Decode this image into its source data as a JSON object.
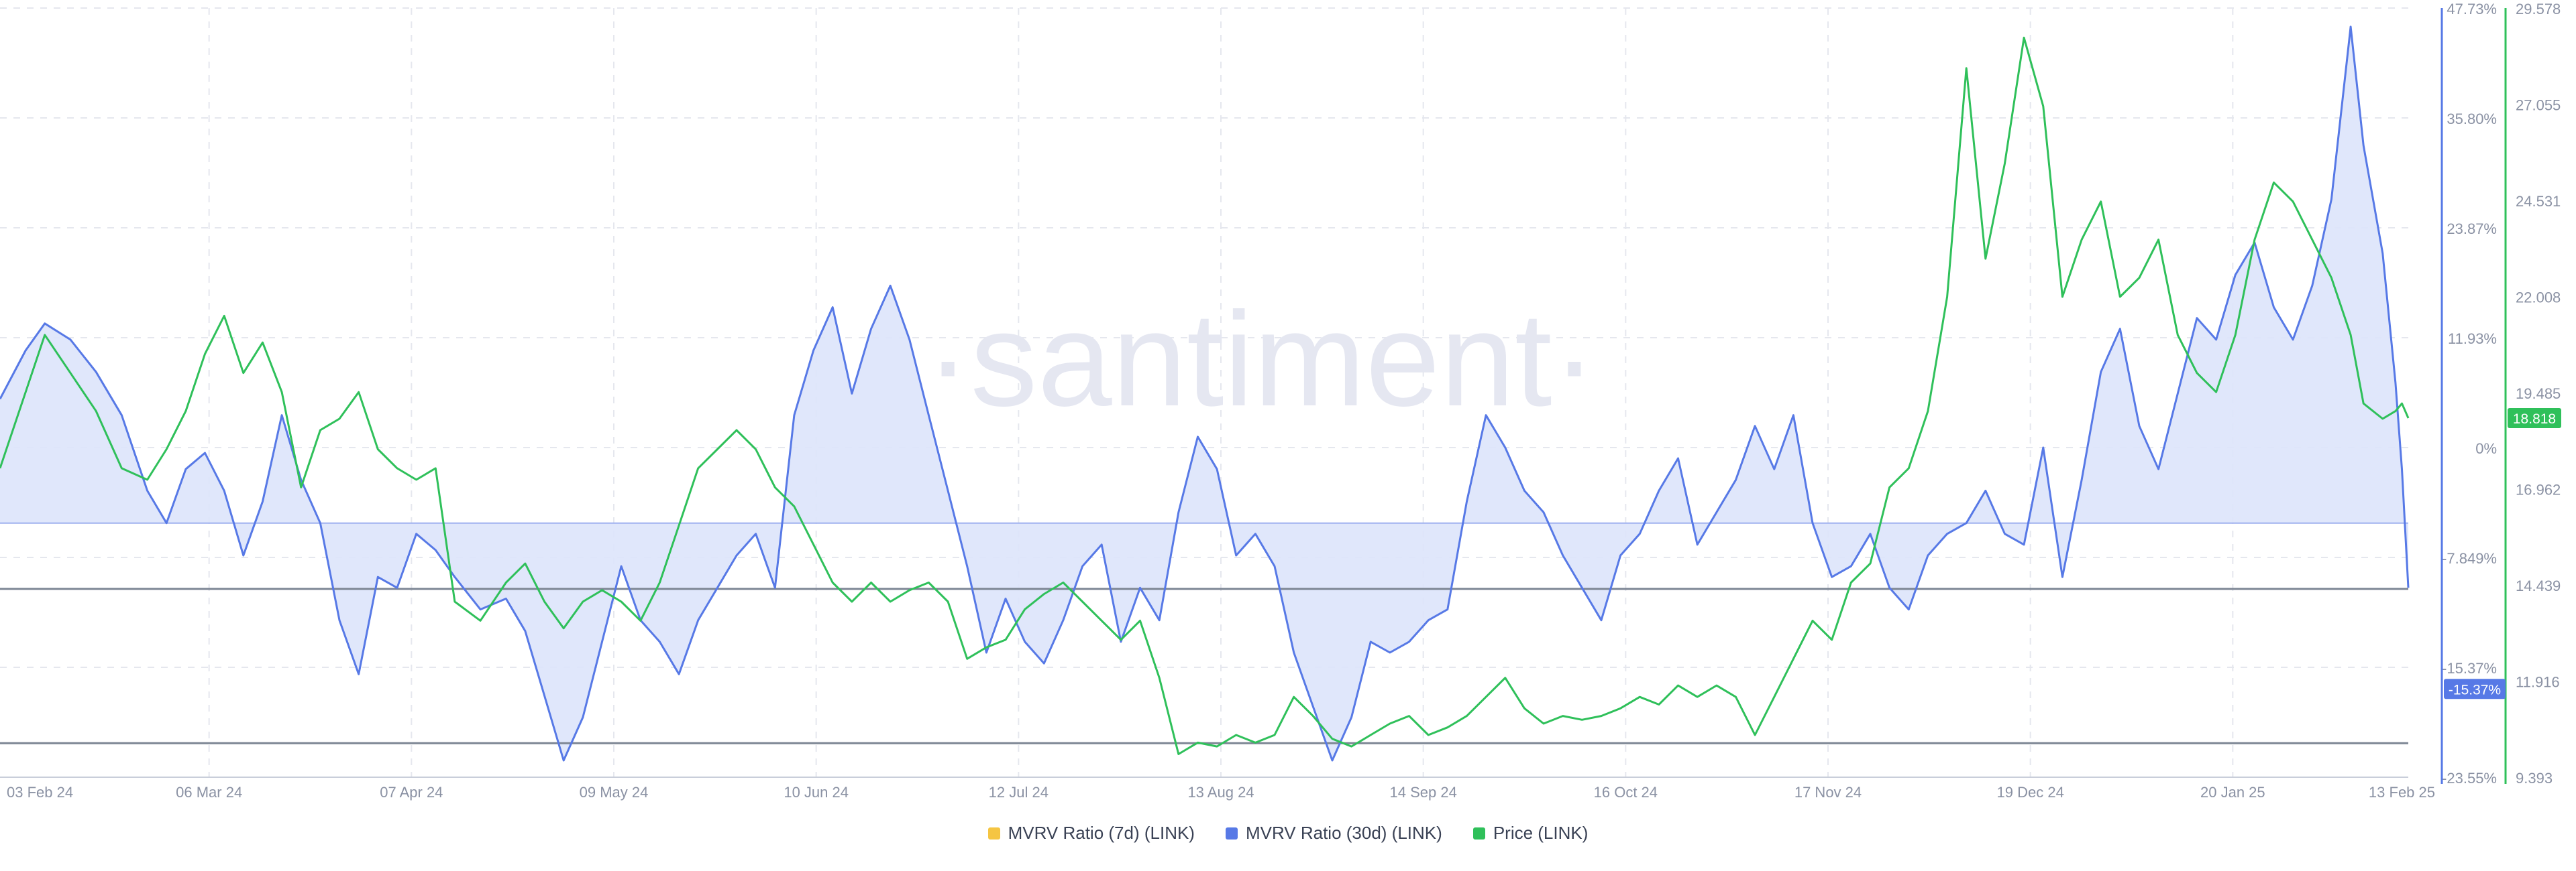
{
  "watermark": "·santiment·",
  "colors": {
    "mvrv7d": "#f5c542",
    "mvrv30d": "#5779e6",
    "price": "#2fc05a",
    "fill": "#dde4fb",
    "grid": "#e5e7ee",
    "band": "#7d8694"
  },
  "legend": [
    {
      "label": "MVRV Ratio (7d) (LINK)",
      "color": "#f5c542"
    },
    {
      "label": "MVRV Ratio (30d) (LINK)",
      "color": "#5779e6"
    },
    {
      "label": "Price (LINK)",
      "color": "#2fc05a"
    }
  ],
  "chart_data": {
    "type": "line",
    "x_ticks": [
      "03 Feb 24",
      "06 Mar 24",
      "07 Apr 24",
      "09 May 24",
      "10 Jun 24",
      "12 Jul 24",
      "13 Aug 24",
      "14 Sep 24",
      "16 Oct 24",
      "17 Nov 24",
      "19 Dec 24",
      "20 Jan 25",
      "13 Feb 25"
    ],
    "x_range": [
      "2024-02-03",
      "2025-02-13"
    ],
    "mvrv_axis": {
      "ticks": [
        "47.73%",
        "35.80%",
        "23.87%",
        "11.93%",
        "0%",
        "-7.849%",
        "-15.37%",
        "-23.55%"
      ],
      "range": [
        -23.55,
        47.73
      ],
      "current_label": "-15.37%"
    },
    "price_axis": {
      "ticks": [
        "29.578",
        "27.055",
        "24.531",
        "22.008",
        "19.485",
        "16.962",
        "14.439",
        "11.916",
        "9.393"
      ],
      "range": [
        9.393,
        29.578
      ],
      "current_label": "18.818"
    },
    "reference_lines": [
      -6.1,
      -20.4
    ],
    "series": [
      {
        "name": "MVRV Ratio (30d) (LINK)",
        "points": [
          [
            "2024-02-03",
            11.5
          ],
          [
            "2024-02-07",
            16
          ],
          [
            "2024-02-10",
            18.5
          ],
          [
            "2024-02-14",
            17
          ],
          [
            "2024-02-18",
            14
          ],
          [
            "2024-02-22",
            10
          ],
          [
            "2024-02-26",
            3
          ],
          [
            "2024-02-29",
            0
          ],
          [
            "2024-03-03",
            5
          ],
          [
            "2024-03-06",
            6.5
          ],
          [
            "2024-03-09",
            3
          ],
          [
            "2024-03-12",
            -3
          ],
          [
            "2024-03-15",
            2
          ],
          [
            "2024-03-18",
            10
          ],
          [
            "2024-03-21",
            4
          ],
          [
            "2024-03-24",
            0
          ],
          [
            "2024-03-27",
            -9
          ],
          [
            "2024-03-30",
            -14
          ],
          [
            "2024-04-02",
            -5
          ],
          [
            "2024-04-05",
            -6
          ],
          [
            "2024-04-08",
            -1
          ],
          [
            "2024-04-11",
            -2.5
          ],
          [
            "2024-04-14",
            -5
          ],
          [
            "2024-04-18",
            -8
          ],
          [
            "2024-04-22",
            -7
          ],
          [
            "2024-04-25",
            -10
          ],
          [
            "2024-04-28",
            -16
          ],
          [
            "2024-05-01",
            -22
          ],
          [
            "2024-05-04",
            -18
          ],
          [
            "2024-05-07",
            -11
          ],
          [
            "2024-05-10",
            -4
          ],
          [
            "2024-05-13",
            -9
          ],
          [
            "2024-05-16",
            -11
          ],
          [
            "2024-05-19",
            -14
          ],
          [
            "2024-05-22",
            -9
          ],
          [
            "2024-05-25",
            -6
          ],
          [
            "2024-05-28",
            -3
          ],
          [
            "2024-05-31",
            -1
          ],
          [
            "2024-06-03",
            -6
          ],
          [
            "2024-06-06",
            10
          ],
          [
            "2024-06-09",
            16
          ],
          [
            "2024-06-12",
            20
          ],
          [
            "2024-06-15",
            12
          ],
          [
            "2024-06-18",
            18
          ],
          [
            "2024-06-21",
            22
          ],
          [
            "2024-06-24",
            17
          ],
          [
            "2024-06-27",
            10
          ],
          [
            "2024-06-30",
            3
          ],
          [
            "2024-07-03",
            -4
          ],
          [
            "2024-07-06",
            -12
          ],
          [
            "2024-07-09",
            -7
          ],
          [
            "2024-07-12",
            -11
          ],
          [
            "2024-07-15",
            -13
          ],
          [
            "2024-07-18",
            -9
          ],
          [
            "2024-07-21",
            -4
          ],
          [
            "2024-07-24",
            -2
          ],
          [
            "2024-07-27",
            -11
          ],
          [
            "2024-07-30",
            -6
          ],
          [
            "2024-08-02",
            -9
          ],
          [
            "2024-08-05",
            1
          ],
          [
            "2024-08-08",
            8
          ],
          [
            "2024-08-11",
            5
          ],
          [
            "2024-08-14",
            -3
          ],
          [
            "2024-08-17",
            -1
          ],
          [
            "2024-08-20",
            -4
          ],
          [
            "2024-08-23",
            -12
          ],
          [
            "2024-08-26",
            -17
          ],
          [
            "2024-08-29",
            -22
          ],
          [
            "2024-09-01",
            -18
          ],
          [
            "2024-09-04",
            -11
          ],
          [
            "2024-09-07",
            -12
          ],
          [
            "2024-09-10",
            -11
          ],
          [
            "2024-09-13",
            -9
          ],
          [
            "2024-09-16",
            -8
          ],
          [
            "2024-09-19",
            2
          ],
          [
            "2024-09-22",
            10
          ],
          [
            "2024-09-25",
            7
          ],
          [
            "2024-09-28",
            3
          ],
          [
            "2024-10-01",
            1
          ],
          [
            "2024-10-04",
            -3
          ],
          [
            "2024-10-07",
            -6
          ],
          [
            "2024-10-10",
            -9
          ],
          [
            "2024-10-13",
            -3
          ],
          [
            "2024-10-16",
            -1
          ],
          [
            "2024-10-19",
            3
          ],
          [
            "2024-10-22",
            6
          ],
          [
            "2024-10-25",
            -2
          ],
          [
            "2024-10-28",
            1
          ],
          [
            "2024-10-31",
            4
          ],
          [
            "2024-11-03",
            9
          ],
          [
            "2024-11-06",
            5
          ],
          [
            "2024-11-09",
            10
          ],
          [
            "2024-11-12",
            0
          ],
          [
            "2024-11-15",
            -5
          ],
          [
            "2024-11-18",
            -4
          ],
          [
            "2024-11-21",
            -1
          ],
          [
            "2024-11-24",
            -6
          ],
          [
            "2024-11-27",
            -8
          ],
          [
            "2024-11-30",
            -3
          ],
          [
            "2024-12-03",
            -1
          ],
          [
            "2024-12-06",
            0
          ],
          [
            "2024-12-09",
            3
          ],
          [
            "2024-12-12",
            -1
          ],
          [
            "2024-12-15",
            -2
          ],
          [
            "2024-12-18",
            7
          ],
          [
            "2024-12-21",
            -5
          ],
          [
            "2024-12-24",
            4
          ],
          [
            "2024-12-27",
            14
          ],
          [
            "2024-12-30",
            18
          ],
          [
            "2025-01-02",
            9
          ],
          [
            "2025-01-05",
            5
          ],
          [
            "2025-01-08",
            12
          ],
          [
            "2025-01-11",
            19
          ],
          [
            "2025-01-14",
            17
          ],
          [
            "2025-01-17",
            23
          ],
          [
            "2025-01-20",
            26
          ],
          [
            "2025-01-23",
            20
          ],
          [
            "2025-01-26",
            17
          ],
          [
            "2025-01-29",
            22
          ],
          [
            "2025-02-01",
            30
          ],
          [
            "2025-02-04",
            46
          ],
          [
            "2025-02-06",
            35
          ],
          [
            "2025-02-09",
            25
          ],
          [
            "2025-02-11",
            13
          ],
          [
            "2025-02-12",
            5
          ],
          [
            "2025-02-13",
            -6
          ]
        ]
      },
      {
        "name": "Price (LINK)",
        "points": [
          [
            "2024-02-03",
            17.5
          ],
          [
            "2024-02-07",
            19.5
          ],
          [
            "2024-02-10",
            21
          ],
          [
            "2024-02-14",
            20
          ],
          [
            "2024-02-18",
            19
          ],
          [
            "2024-02-22",
            17.5
          ],
          [
            "2024-02-26",
            17.2
          ],
          [
            "2024-02-29",
            18
          ],
          [
            "2024-03-03",
            19
          ],
          [
            "2024-03-06",
            20.5
          ],
          [
            "2024-03-09",
            21.5
          ],
          [
            "2024-03-12",
            20
          ],
          [
            "2024-03-15",
            20.8
          ],
          [
            "2024-03-18",
            19.5
          ],
          [
            "2024-03-21",
            17
          ],
          [
            "2024-03-24",
            18.5
          ],
          [
            "2024-03-27",
            18.8
          ],
          [
            "2024-03-30",
            19.5
          ],
          [
            "2024-04-02",
            18
          ],
          [
            "2024-04-05",
            17.5
          ],
          [
            "2024-04-08",
            17.2
          ],
          [
            "2024-04-11",
            17.5
          ],
          [
            "2024-04-14",
            14
          ],
          [
            "2024-04-18",
            13.5
          ],
          [
            "2024-04-22",
            14.5
          ],
          [
            "2024-04-25",
            15
          ],
          [
            "2024-04-28",
            14
          ],
          [
            "2024-05-01",
            13.3
          ],
          [
            "2024-05-04",
            14
          ],
          [
            "2024-05-07",
            14.3
          ],
          [
            "2024-05-10",
            14
          ],
          [
            "2024-05-13",
            13.5
          ],
          [
            "2024-05-16",
            14.5
          ],
          [
            "2024-05-19",
            16
          ],
          [
            "2024-05-22",
            17.5
          ],
          [
            "2024-05-25",
            18
          ],
          [
            "2024-05-28",
            18.5
          ],
          [
            "2024-05-31",
            18
          ],
          [
            "2024-06-03",
            17
          ],
          [
            "2024-06-06",
            16.5
          ],
          [
            "2024-06-09",
            15.5
          ],
          [
            "2024-06-12",
            14.5
          ],
          [
            "2024-06-15",
            14
          ],
          [
            "2024-06-18",
            14.5
          ],
          [
            "2024-06-21",
            14
          ],
          [
            "2024-06-24",
            14.3
          ],
          [
            "2024-06-27",
            14.5
          ],
          [
            "2024-06-30",
            14
          ],
          [
            "2024-07-03",
            12.5
          ],
          [
            "2024-07-06",
            12.8
          ],
          [
            "2024-07-09",
            13
          ],
          [
            "2024-07-12",
            13.8
          ],
          [
            "2024-07-15",
            14.2
          ],
          [
            "2024-07-18",
            14.5
          ],
          [
            "2024-07-21",
            14
          ],
          [
            "2024-07-24",
            13.5
          ],
          [
            "2024-07-27",
            13
          ],
          [
            "2024-07-30",
            13.5
          ],
          [
            "2024-08-02",
            12
          ],
          [
            "2024-08-05",
            10
          ],
          [
            "2024-08-08",
            10.3
          ],
          [
            "2024-08-11",
            10.2
          ],
          [
            "2024-08-14",
            10.5
          ],
          [
            "2024-08-17",
            10.3
          ],
          [
            "2024-08-20",
            10.5
          ],
          [
            "2024-08-23",
            11.5
          ],
          [
            "2024-08-26",
            11
          ],
          [
            "2024-08-29",
            10.4
          ],
          [
            "2024-09-01",
            10.2
          ],
          [
            "2024-09-04",
            10.5
          ],
          [
            "2024-09-07",
            10.8
          ],
          [
            "2024-09-10",
            11
          ],
          [
            "2024-09-13",
            10.5
          ],
          [
            "2024-09-16",
            10.7
          ],
          [
            "2024-09-19",
            11
          ],
          [
            "2024-09-22",
            11.5
          ],
          [
            "2024-09-25",
            12
          ],
          [
            "2024-09-28",
            11.2
          ],
          [
            "2024-10-01",
            10.8
          ],
          [
            "2024-10-04",
            11
          ],
          [
            "2024-10-07",
            10.9
          ],
          [
            "2024-10-10",
            11
          ],
          [
            "2024-10-13",
            11.2
          ],
          [
            "2024-10-16",
            11.5
          ],
          [
            "2024-10-19",
            11.3
          ],
          [
            "2024-10-22",
            11.8
          ],
          [
            "2024-10-25",
            11.5
          ],
          [
            "2024-10-28",
            11.8
          ],
          [
            "2024-10-31",
            11.5
          ],
          [
            "2024-11-03",
            10.5
          ],
          [
            "2024-11-06",
            11.5
          ],
          [
            "2024-11-09",
            12.5
          ],
          [
            "2024-11-12",
            13.5
          ],
          [
            "2024-11-15",
            13
          ],
          [
            "2024-11-18",
            14.5
          ],
          [
            "2024-11-21",
            15
          ],
          [
            "2024-11-24",
            17
          ],
          [
            "2024-11-27",
            17.5
          ],
          [
            "2024-11-30",
            19
          ],
          [
            "2024-12-03",
            22
          ],
          [
            "2024-12-06",
            28
          ],
          [
            "2024-12-09",
            23
          ],
          [
            "2024-12-12",
            25.5
          ],
          [
            "2024-12-15",
            28.8
          ],
          [
            "2024-12-18",
            27
          ],
          [
            "2024-12-21",
            22
          ],
          [
            "2024-12-24",
            23.5
          ],
          [
            "2024-12-27",
            24.5
          ],
          [
            "2024-12-30",
            22
          ],
          [
            "2025-01-02",
            22.5
          ],
          [
            "2025-01-05",
            23.5
          ],
          [
            "2025-01-08",
            21
          ],
          [
            "2025-01-11",
            20
          ],
          [
            "2025-01-14",
            19.5
          ],
          [
            "2025-01-17",
            21
          ],
          [
            "2025-01-20",
            23.5
          ],
          [
            "2025-01-23",
            25
          ],
          [
            "2025-01-26",
            24.5
          ],
          [
            "2025-01-29",
            23.5
          ],
          [
            "2025-02-01",
            22.5
          ],
          [
            "2025-02-04",
            21
          ],
          [
            "2025-02-06",
            19.2
          ],
          [
            "2025-02-09",
            18.8
          ],
          [
            "2025-02-11",
            19
          ],
          [
            "2025-02-12",
            19.2
          ],
          [
            "2025-02-13",
            18.818
          ]
        ]
      }
    ],
    "grid": true,
    "legend_position": "bottom-center"
  }
}
